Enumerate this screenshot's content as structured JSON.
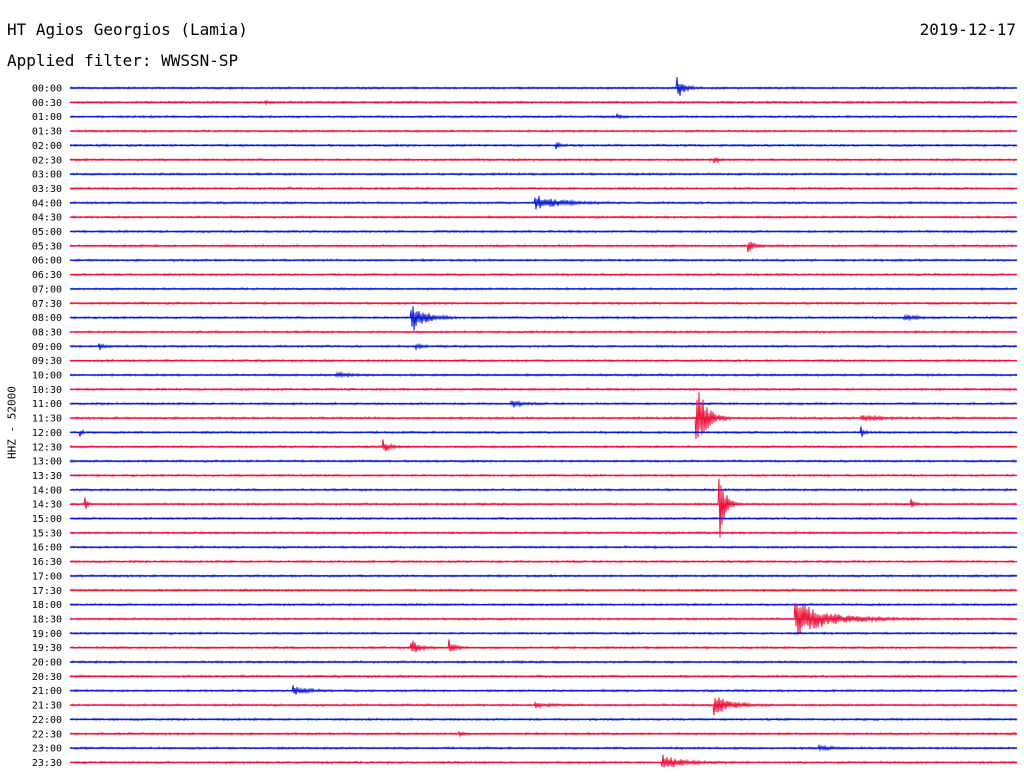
{
  "header": {
    "station": "HT Agios Georgios (Lamia)",
    "date": "2019-12-17",
    "filter": "Applied filter: WWSSN-SP",
    "channel": "HHZ - 52000"
  },
  "colors": {
    "even": "#0a1bd6",
    "odd": "#f0103a"
  },
  "chart_data": {
    "type": "line",
    "title": "HT Agios Georgios (Lamia)",
    "ylabel": "HHZ - 52000",
    "rows": [
      "00:00",
      "00:30",
      "01:00",
      "01:30",
      "02:00",
      "02:30",
      "03:00",
      "03:30",
      "04:00",
      "04:30",
      "05:00",
      "05:30",
      "06:00",
      "06:30",
      "07:00",
      "07:30",
      "08:00",
      "08:30",
      "09:00",
      "09:30",
      "10:00",
      "10:30",
      "11:00",
      "11:30",
      "12:00",
      "12:30",
      "13:00",
      "13:30",
      "14:00",
      "14:30",
      "15:00",
      "15:30",
      "16:00",
      "16:30",
      "17:00",
      "17:30",
      "18:00",
      "18:30",
      "19:00",
      "19:30",
      "20:00",
      "20:30",
      "21:00",
      "21:30",
      "22:00",
      "22:30",
      "23:00",
      "23:30"
    ],
    "row_span_minutes": 30,
    "events": [
      {
        "row": "00:00",
        "t": 0.64,
        "amp": 14,
        "dur": 0.018
      },
      {
        "row": "00:30",
        "t": 0.205,
        "amp": 3,
        "dur": 0.006
      },
      {
        "row": "01:00",
        "t": 0.577,
        "amp": 2,
        "dur": 0.012
      },
      {
        "row": "02:00",
        "t": 0.513,
        "amp": 3,
        "dur": 0.012
      },
      {
        "row": "02:30",
        "t": 0.68,
        "amp": 3,
        "dur": 0.012
      },
      {
        "row": "04:00",
        "t": 0.49,
        "amp": 8,
        "dur": 0.06
      },
      {
        "row": "05:30",
        "t": 0.715,
        "amp": 7,
        "dur": 0.015
      },
      {
        "row": "08:00",
        "t": 0.36,
        "amp": 16,
        "dur": 0.035
      },
      {
        "row": "08:00",
        "t": 0.88,
        "amp": 3,
        "dur": 0.03
      },
      {
        "row": "09:00",
        "t": 0.03,
        "amp": 5,
        "dur": 0.01
      },
      {
        "row": "09:00",
        "t": 0.365,
        "amp": 4,
        "dur": 0.01
      },
      {
        "row": "10:00",
        "t": 0.28,
        "amp": 2,
        "dur": 0.04
      },
      {
        "row": "11:00",
        "t": 0.465,
        "amp": 4,
        "dur": 0.025
      },
      {
        "row": "11:30",
        "t": 0.66,
        "amp": 48,
        "dur": 0.025
      },
      {
        "row": "11:30",
        "t": 0.835,
        "amp": 3,
        "dur": 0.04
      },
      {
        "row": "12:00",
        "t": 0.01,
        "amp": 5,
        "dur": 0.006
      },
      {
        "row": "12:00",
        "t": 0.835,
        "amp": 7,
        "dur": 0.008
      },
      {
        "row": "12:30",
        "t": 0.33,
        "amp": 9,
        "dur": 0.015
      },
      {
        "row": "14:30",
        "t": 0.015,
        "amp": 12,
        "dur": 0.006
      },
      {
        "row": "14:30",
        "t": 0.685,
        "amp": 46,
        "dur": 0.015
      },
      {
        "row": "14:30",
        "t": 0.888,
        "amp": 5,
        "dur": 0.008
      },
      {
        "row": "18:30",
        "t": 0.765,
        "amp": 18,
        "dur": 0.09
      },
      {
        "row": "19:30",
        "t": 0.36,
        "amp": 9,
        "dur": 0.02
      },
      {
        "row": "19:30",
        "t": 0.4,
        "amp": 8,
        "dur": 0.015
      },
      {
        "row": "21:00",
        "t": 0.235,
        "amp": 5,
        "dur": 0.035
      },
      {
        "row": "21:30",
        "t": 0.49,
        "amp": 3,
        "dur": 0.03
      },
      {
        "row": "21:30",
        "t": 0.68,
        "amp": 12,
        "dur": 0.04
      },
      {
        "row": "22:30",
        "t": 0.41,
        "amp": 3,
        "dur": 0.01
      },
      {
        "row": "23:00",
        "t": 0.79,
        "amp": 2,
        "dur": 0.03
      },
      {
        "row": "23:30",
        "t": 0.625,
        "amp": 8,
        "dur": 0.05
      }
    ]
  }
}
